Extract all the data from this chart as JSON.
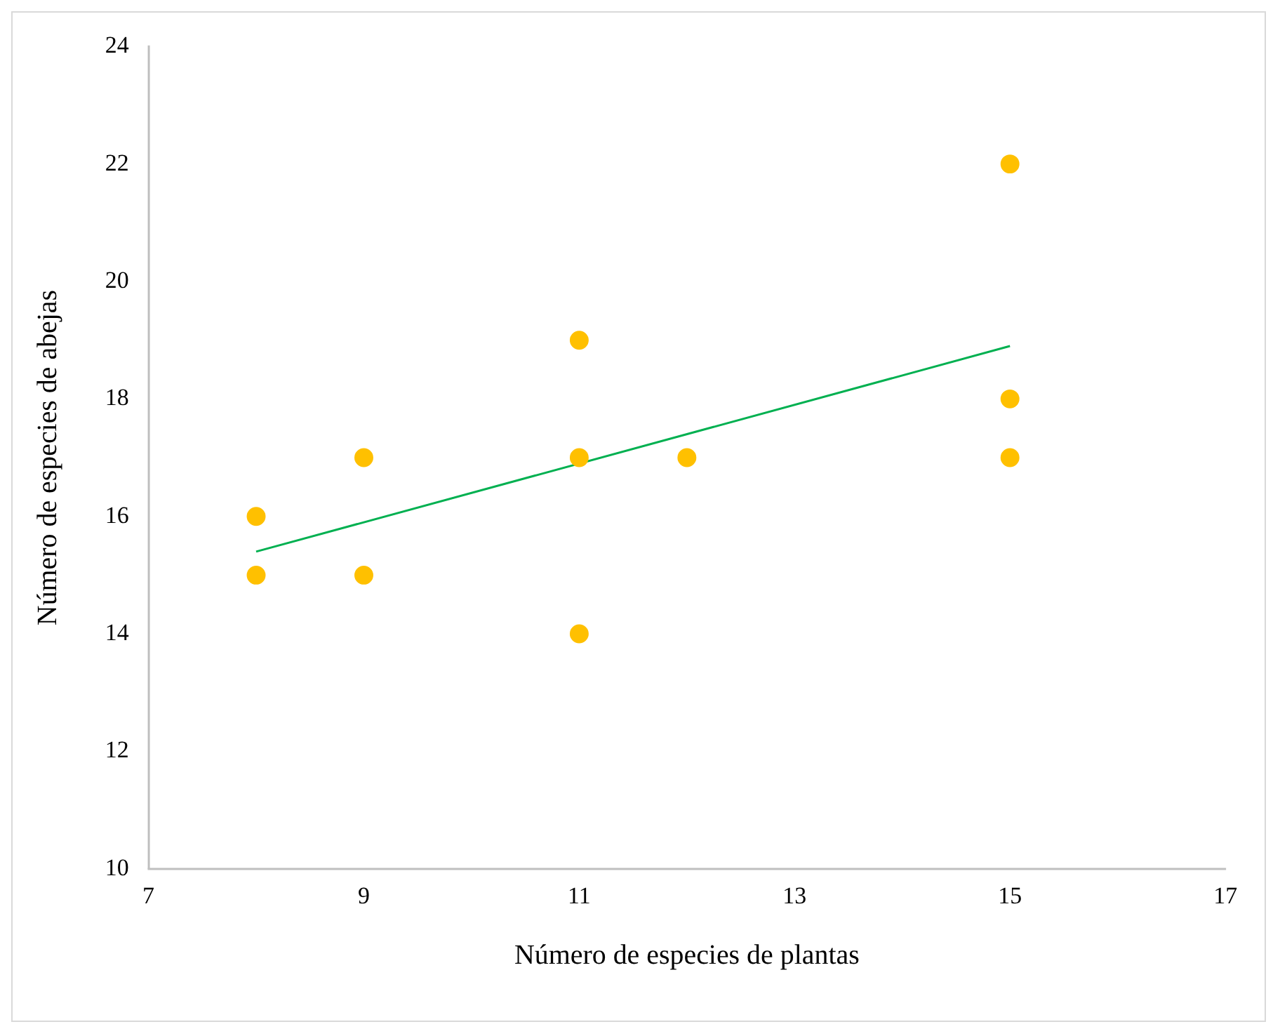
{
  "chart_data": {
    "type": "scatter",
    "xlabel": "Número de especies de plantas",
    "ylabel": "Número de especies de abejas",
    "xlim": [
      7,
      17
    ],
    "xticks": [
      7,
      9,
      11,
      13,
      15,
      17
    ],
    "ylim": [
      10,
      24
    ],
    "yticks": [
      10,
      12,
      14,
      16,
      18,
      20,
      22,
      24
    ],
    "grid": false,
    "legend": false,
    "series": [
      {
        "type": "scatter",
        "color": "#ffc000",
        "marker": "circle",
        "x": [
          8,
          8,
          9,
          9,
          11,
          11,
          11,
          12,
          15,
          15,
          15
        ],
        "values": [
          16,
          15,
          17,
          15,
          19,
          17,
          14,
          17,
          22,
          18,
          17
        ]
      },
      {
        "type": "line",
        "color": "#00b050",
        "marker": "none",
        "line_style": "solid",
        "x": [
          8,
          15
        ],
        "values": [
          15.4,
          18.9
        ]
      }
    ]
  }
}
